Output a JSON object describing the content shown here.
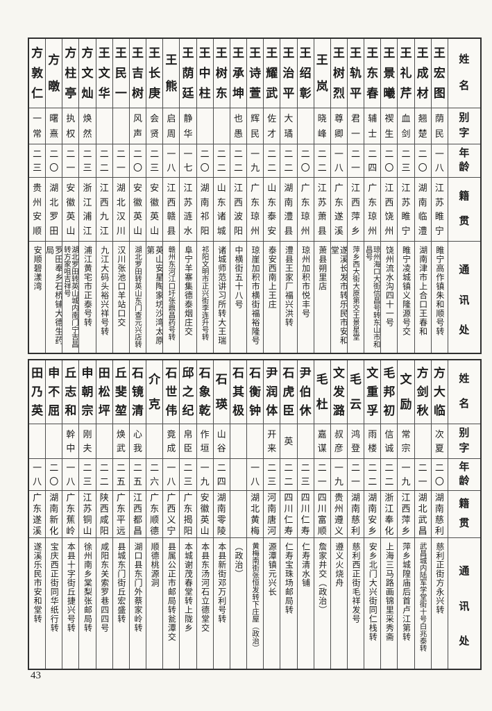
{
  "page": {
    "number": "43"
  },
  "header_labels": {
    "name": "姓名",
    "zi": "别字",
    "age": "年龄",
    "native": "籍贯",
    "address": "通讯处"
  },
  "sections": {
    "top": {
      "persons": [
        {
          "name": "方敦仁",
          "zi": "一常",
          "age": "二三",
          "native": "贵州安顺",
          "address": "安顺碧漾湾"
        },
        {
          "name": "方暾",
          "zi": "曙熹",
          "age": "二〇",
          "native": "湖北罗田",
          "address": "罗田奉乡石桥铺大德生药局"
        },
        {
          "name": "方柱亭",
          "zi": "执权",
          "age": "二一",
          "native": "安徽英山",
          "address": "湖北罗田转英山城内南门宁吉昌转方家咀吉祥号"
        },
        {
          "name": "方文灿",
          "zi": "焕然",
          "age": "二三",
          "native": "浙江浦江",
          "address": "浦江黄宅市正泰号转"
        },
        {
          "name": "王文华",
          "zi": "",
          "age": "二二",
          "native": "江西九江",
          "address": "九江大码头裕兴祥号转"
        },
        {
          "name": "王民一",
          "zi": "",
          "age": "二一",
          "native": "湖北汉川",
          "address": "汉川张池口羊站口交"
        },
        {
          "name": "王吉树",
          "zi": "风声",
          "age": "二〇",
          "native": "安徽英山",
          "address": "湖北罗田转英山东门查元兴店转"
        },
        {
          "name": "王长庚",
          "zi": "会贤",
          "age": "二三",
          "native": "安徽英山",
          "address": "英山安星陶家坊沙湾太原第"
        },
        {
          "name": "王熊",
          "zi": "启周",
          "age": "一八",
          "native": "江西赣县",
          "address": "赣州东河江口圩张鼎昌药号转"
        },
        {
          "name": "王荫廷",
          "zi": "静华",
          "age": "一七",
          "native": "江苏涟水",
          "address": "阜宁羊寨集德泰烟庄交"
        },
        {
          "name": "王中柱",
          "zi": "",
          "age": "二〇",
          "native": "湖南祁阳",
          "address": "祁阳文明市正兴街李连升号转"
        },
        {
          "name": "王树东",
          "zi": "",
          "age": "二二",
          "native": "山东诸城",
          "address": "诸城师范讲习所转大王瑞"
        },
        {
          "name": "王承坤",
          "zi": "也愚",
          "age": "二二",
          "native": "江西波阳",
          "address": "中横街五十八号"
        },
        {
          "name": "王诗萱",
          "zi": "辉民",
          "age": "一九",
          "native": "广东琼州",
          "address": "琼崖加积市横街福裕隆号"
        },
        {
          "name": "王耀武",
          "zi": "佐才",
          "age": "二二",
          "native": "山东泰安",
          "address": "泰安西南上王庄"
        },
        {
          "name": "王治平",
          "zi": "大璚",
          "age": "二二",
          "native": "湖南澧县",
          "address": "澧县王家厂福兴洪转"
        },
        {
          "name": "王绍彰",
          "zi": "",
          "age": "二〇",
          "native": "广东琼州",
          "address": "琼州加积市悦丰号"
        },
        {
          "name": "王岚",
          "zi": "晓峰",
          "age": "二二",
          "native": "江苏萧县",
          "address": "萧县朔里店"
        },
        {
          "name": "王树烈",
          "zi": "尊卿",
          "age": "一八",
          "native": "广东遂溪",
          "address": "遂溪长发市转乐民市安和堂"
        },
        {
          "name": "王轨平",
          "zi": "君一",
          "age": "二一",
          "native": "江西萍乡",
          "address": "萍乡西大街大原第交王景星堂"
        },
        {
          "name": "王东春",
          "zi": "辅士",
          "age": "二四",
          "native": "广东琼州",
          "address": "琼州海口大街信昌号转东山市和昌号"
        },
        {
          "name": "王景曦",
          "zi": "禊生",
          "age": "二〇",
          "native": "江西饶州",
          "address": "饶州流水沟四十一号"
        },
        {
          "name": "王礼芹",
          "zi": "血剑",
          "age": "二三",
          "native": "江苏睢宁",
          "address": "睢宁凌城镇义隆源号交"
        },
        {
          "name": "王成材",
          "zi": "翘楚",
          "age": "二〇",
          "native": "湖南临澧",
          "address": "湖南津市上合口王春和"
        },
        {
          "name": "王宏图",
          "zi": "荫民",
          "age": "一八",
          "native": "江苏睢宁",
          "address": "睢宁高作镇朱和顺号转"
        }
      ]
    },
    "bottom": {
      "persons": [
        {
          "name": "田乃英",
          "zi": "",
          "age": "一八",
          "native": "广东遂溪",
          "address": "遂溪乐民市安和堂转"
        },
        {
          "name": "申不屈",
          "zi": "",
          "age": "二〇",
          "native": "湖南新化",
          "address": "宝庆西正街同华纸行转"
        },
        {
          "name": "丘志和",
          "zi": "幹中",
          "age": "一八",
          "native": "广东蕉岭",
          "address": "本县十字街丘捷兴号转"
        },
        {
          "name": "申朝宗",
          "zi": "刚夫",
          "age": "二三",
          "native": "江苏铜山",
          "address": "徐州南乡棠梨张邮局转"
        },
        {
          "name": "田松坪",
          "zi": "",
          "age": "二二",
          "native": "陕西咸阳",
          "address": "咸阳东关索罗巷四四号"
        },
        {
          "name": "丘斐堃",
          "zi": "焕武",
          "age": "二五",
          "native": "广东平远",
          "address": "县城东门街丘宏盛转"
        },
        {
          "name": "石镜清",
          "zi": "心我",
          "age": "二五",
          "native": "江西都昌",
          "address": "湖口县东门外蔡家岭转"
        },
        {
          "name": "介克",
          "zi": "",
          "age": "二六",
          "native": "广东顺德",
          "address": "顺德桃源洞"
        },
        {
          "name": "石世伟",
          "zi": "竟成",
          "age": "一八",
          "native": "广西义宁",
          "address": "县属公正市邮局转瓮潭交"
        },
        {
          "name": "邱之纪",
          "zi": "帛臣",
          "age": "二三",
          "native": "广东揭阳",
          "address": "本城谢茂春堂转上陇乡"
        },
        {
          "name": "石象乾",
          "zi": "作垣",
          "age": "一九",
          "native": "安徽英山",
          "address": "本县东汤河石立德堂交"
        },
        {
          "name": "石瑛",
          "zi": "山谷",
          "age": "二四",
          "native": "湖南零陵",
          "address": "本县新街邓万利号转"
        },
        {
          "name": "石其极",
          "zi": "",
          "age": "",
          "native": "",
          "address": "（政治）"
        },
        {
          "name": "石衡钟",
          "zi": "",
          "age": "一八",
          "native": "湖北黄梅",
          "address": "黄梅南街张恒发转下庄屋（政治）"
        },
        {
          "name": "尹润体",
          "zi": "开来",
          "age": "二三",
          "native": "河南唐河",
          "address": "源潭镇元兴长"
        },
        {
          "name": "石虎臣",
          "zi": "英",
          "age": "二二",
          "native": "四川仁寿",
          "address": "仁寿宝珠场邮局转"
        },
        {
          "name": "尹伯休",
          "zi": "",
          "age": "二三",
          "native": "四川仁寿",
          "address": "仁寿清水铺"
        },
        {
          "name": "毛杜",
          "zi": "嘉谋",
          "age": "二一",
          "native": "四川富顺",
          "address": "詹家井交（政治）"
        },
        {
          "name": "文发潞",
          "zi": "叔彦",
          "age": "一九",
          "native": "贵州遵义",
          "address": "遵义火烧舟"
        },
        {
          "name": "毛云",
          "zi": "鸿登",
          "age": "二一",
          "native": "湖南慈利",
          "address": "慈利西正街毛祥发号"
        },
        {
          "name": "文重孚",
          "zi": "雨楼",
          "age": "二二",
          "native": "湖南安乡",
          "address": "安乡北门大兴街同仁栈转"
        },
        {
          "name": "毛邦初",
          "zi": "信诚",
          "age": "二二",
          "native": "浙江奉化",
          "address": "上海三马路画锦里采秀斋"
        },
        {
          "name": "文励",
          "zi": "常宗",
          "age": "一九",
          "native": "江西萍乡",
          "address": "萍乡城隍庙后首卢江第转"
        },
        {
          "name": "方剑秋",
          "zi": "",
          "age": "二一",
          "native": "湖北武昌",
          "address": "武昌城内陆军学堂街十号白兆泰转"
        },
        {
          "name": "方大临",
          "zi": "次夏",
          "age": "二〇",
          "native": "湖南慈利",
          "address": "慈利正街方永兴转"
        }
      ]
    }
  }
}
